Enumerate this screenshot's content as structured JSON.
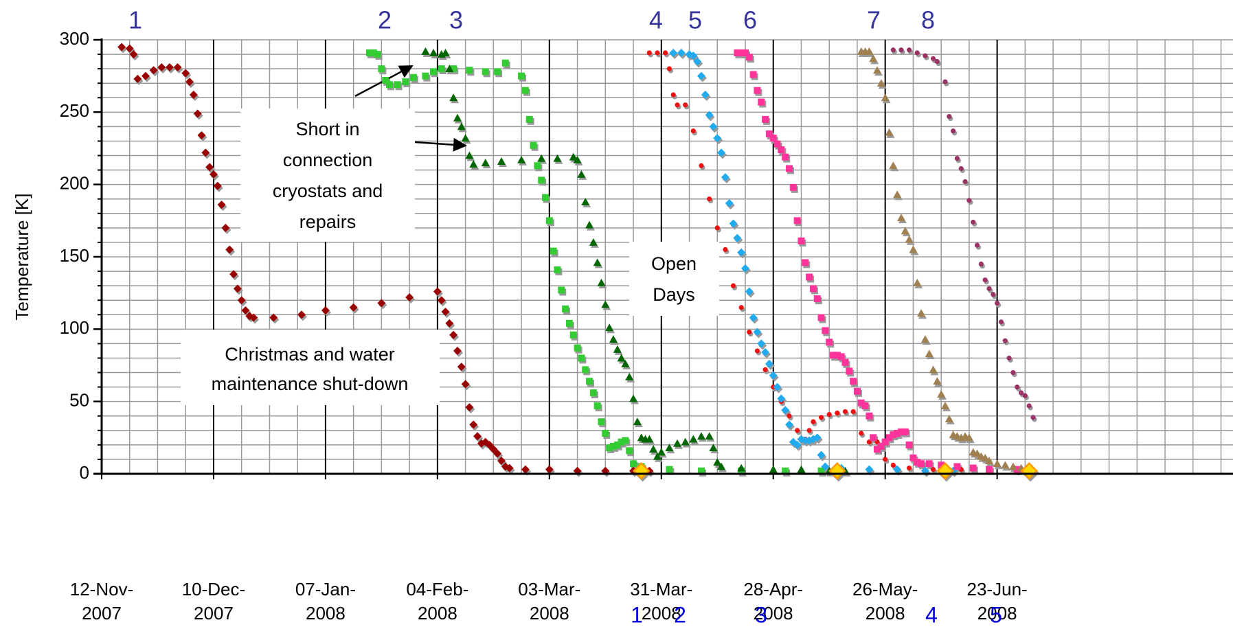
{
  "chart_data": {
    "type": "scatter",
    "y_label": "Temperature [K]",
    "xlim": [
      "2007-11-12",
      "2008-08-21"
    ],
    "xticks": [
      {
        "value": "2007-11-12",
        "label": [
          "12-Nov-",
          "2007"
        ]
      },
      {
        "value": "2007-12-10",
        "label": [
          "10-Dec-",
          "2007"
        ]
      },
      {
        "value": "2008-01-07",
        "label": [
          "07-Jan-",
          "2008"
        ]
      },
      {
        "value": "2008-02-04",
        "label": [
          "04-Feb-",
          "2008"
        ]
      },
      {
        "value": "2008-03-03",
        "label": [
          "03-Mar-",
          "2008"
        ]
      },
      {
        "value": "2008-03-31",
        "label": [
          "31-Mar-",
          "2008"
        ]
      },
      {
        "value": "2008-04-28",
        "label": [
          "28-Apr-",
          "2008"
        ]
      },
      {
        "value": "2008-05-26",
        "label": [
          "26-May-",
          "2008"
        ]
      },
      {
        "value": "2008-06-23",
        "label": [
          "23-Jun-",
          "2008"
        ]
      }
    ],
    "ylim": [
      0,
      300
    ],
    "yticks": [
      0,
      50,
      100,
      150,
      200,
      250,
      300
    ],
    "grid": true,
    "minor_grid_step": {
      "x_days": 7,
      "y": 10
    },
    "annotations": {
      "top_numbers": [
        "1",
        "2",
        "3",
        "4",
        "5",
        "6",
        "7",
        "8"
      ],
      "bottom_numbers": [
        "1",
        "2",
        "3",
        "4",
        "5"
      ],
      "short_note": [
        "Short in",
        "connection",
        "cryostats and",
        "repairs"
      ],
      "open_days_note": [
        "Open",
        "Days"
      ],
      "christmas_note": [
        "Christmas and water",
        "maintenance shut-down"
      ]
    },
    "series": [
      {
        "color": "#990000",
        "marker": "diamond",
        "x": [
          "2007-11-17",
          "2007-11-19",
          "2007-11-20",
          "2007-11-21",
          "2007-11-23",
          "2007-11-25",
          "2007-11-27",
          "2007-11-29",
          "2007-12-01",
          "2007-12-03",
          "2007-12-04",
          "2007-12-05",
          "2007-12-06",
          "2007-12-07",
          "2007-12-08",
          "2007-12-09",
          "2007-12-10",
          "2007-12-11",
          "2007-12-12",
          "2007-12-13",
          "2007-12-14",
          "2007-12-15",
          "2007-12-16",
          "2007-12-17",
          "2007-12-18",
          "2007-12-19",
          "2007-12-20",
          "2007-12-25",
          "2008-01-01",
          "2008-01-07",
          "2008-01-14",
          "2008-01-21",
          "2008-01-28",
          "2008-02-04",
          "2008-02-05",
          "2008-02-06",
          "2008-02-07",
          "2008-02-08",
          "2008-02-09",
          "2008-02-10",
          "2008-02-11",
          "2008-02-12",
          "2008-02-13",
          "2008-02-14",
          "2008-02-15",
          "2008-02-16",
          "2008-02-17",
          "2008-02-18",
          "2008-02-19",
          "2008-02-20",
          "2008-02-21",
          "2008-02-22",
          "2008-02-26",
          "2008-03-03",
          "2008-03-10",
          "2008-03-17",
          "2008-03-24",
          "2008-03-28"
        ],
        "values": [
          295,
          294,
          290,
          273,
          275,
          279,
          281,
          281,
          281,
          277,
          271,
          262,
          249,
          234,
          222,
          212,
          207,
          199,
          186,
          170,
          155,
          138,
          128,
          120,
          113,
          109,
          108,
          108,
          110,
          113,
          115,
          118,
          122,
          126,
          120,
          112,
          104,
          96,
          85,
          74,
          62,
          46,
          34,
          26,
          21,
          22,
          20,
          17,
          14,
          9,
          5,
          4,
          3,
          3,
          2,
          2,
          2,
          2
        ]
      },
      {
        "color": "#33cc33",
        "marker": "square",
        "x": [
          "2008-01-18",
          "2008-01-19",
          "2008-01-20",
          "2008-01-21",
          "2008-01-22",
          "2008-01-23",
          "2008-01-25",
          "2008-01-27",
          "2008-01-29",
          "2008-02-01",
          "2008-02-03",
          "2008-02-05",
          "2008-02-08",
          "2008-02-12",
          "2008-02-16",
          "2008-02-19",
          "2008-02-21",
          "2008-02-25",
          "2008-02-26",
          "2008-02-27",
          "2008-02-28",
          "2008-02-29",
          "2008-03-01",
          "2008-03-02",
          "2008-03-03",
          "2008-03-04",
          "2008-03-05",
          "2008-03-06",
          "2008-03-07",
          "2008-03-08",
          "2008-03-09",
          "2008-03-10",
          "2008-03-11",
          "2008-03-12",
          "2008-03-13",
          "2008-03-14",
          "2008-03-15",
          "2008-03-16",
          "2008-03-17",
          "2008-03-18",
          "2008-03-19",
          "2008-03-20",
          "2008-03-21",
          "2008-03-22",
          "2008-03-23",
          "2008-03-24",
          "2008-03-26",
          "2008-04-02",
          "2008-04-10",
          "2008-04-20",
          "2008-05-01",
          "2008-05-10"
        ],
        "values": [
          291,
          291,
          290,
          280,
          272,
          269,
          269,
          271,
          274,
          275,
          278,
          280,
          280,
          279,
          278,
          278,
          284,
          275,
          265,
          245,
          227,
          213,
          203,
          191,
          175,
          154,
          141,
          127,
          114,
          104,
          96,
          87,
          80,
          72,
          64,
          56,
          47,
          36,
          28,
          18,
          19,
          20,
          22,
          23,
          16,
          7,
          5,
          3,
          2,
          2,
          2,
          2
        ]
      },
      {
        "color": "#006600",
        "marker": "triangle",
        "x": [
          "2008-02-01",
          "2008-02-03",
          "2008-02-05",
          "2008-02-06",
          "2008-02-07",
          "2008-02-08",
          "2008-02-09",
          "2008-02-10",
          "2008-02-11",
          "2008-02-12",
          "2008-02-13",
          "2008-02-16",
          "2008-02-20",
          "2008-02-25",
          "2008-03-01",
          "2008-03-05",
          "2008-03-09",
          "2008-03-10",
          "2008-03-11",
          "2008-03-12",
          "2008-03-13",
          "2008-03-14",
          "2008-03-15",
          "2008-03-16",
          "2008-03-17",
          "2008-03-18",
          "2008-03-19",
          "2008-03-20",
          "2008-03-21",
          "2008-03-22",
          "2008-03-23",
          "2008-03-24",
          "2008-03-25",
          "2008-03-26",
          "2008-03-27",
          "2008-03-28",
          "2008-03-29",
          "2008-03-30",
          "2008-03-31",
          "2008-04-02",
          "2008-04-04",
          "2008-04-06",
          "2008-04-08",
          "2008-04-10",
          "2008-04-12",
          "2008-04-13",
          "2008-04-14",
          "2008-04-15",
          "2008-04-20",
          "2008-04-28",
          "2008-05-05",
          "2008-05-12",
          "2008-05-16"
        ],
        "values": [
          292,
          291,
          290,
          291,
          280,
          260,
          246,
          240,
          232,
          220,
          214,
          215,
          216,
          217,
          218,
          218,
          219,
          217,
          207,
          188,
          172,
          160,
          146,
          132,
          117,
          101,
          93,
          86,
          80,
          76,
          67,
          52,
          36,
          25,
          24,
          24,
          17,
          12,
          15,
          18,
          21,
          22,
          24,
          26,
          26,
          18,
          8,
          5,
          4,
          3,
          3,
          2,
          2
        ]
      },
      {
        "color": "#ee1111",
        "marker": "circle",
        "x": [
          "2008-03-28",
          "2008-03-30",
          "2008-04-01",
          "2008-04-02",
          "2008-04-03",
          "2008-04-04",
          "2008-04-06",
          "2008-04-08",
          "2008-04-10",
          "2008-04-12",
          "2008-04-14",
          "2008-04-16",
          "2008-04-18",
          "2008-04-20",
          "2008-04-22",
          "2008-04-24",
          "2008-04-26",
          "2008-04-28",
          "2008-04-30",
          "2008-05-02",
          "2008-05-04",
          "2008-05-06",
          "2008-05-07",
          "2008-05-08",
          "2008-05-10",
          "2008-05-12",
          "2008-05-14",
          "2008-05-16",
          "2008-05-18",
          "2008-05-20",
          "2008-05-22",
          "2008-05-24",
          "2008-05-26",
          "2008-05-28",
          "2008-06-01",
          "2008-06-07",
          "2008-06-14",
          "2008-06-21",
          "2008-06-28"
        ],
        "values": [
          291,
          291,
          291,
          280,
          262,
          255,
          255,
          237,
          213,
          190,
          170,
          155,
          130,
          115,
          98,
          85,
          72,
          60,
          50,
          40,
          30,
          24,
          30,
          36,
          39,
          41,
          42,
          43,
          43,
          28,
          22,
          22,
          10,
          6,
          4,
          3,
          3,
          3,
          2
        ]
      },
      {
        "color": "#22aaee",
        "marker": "diamond",
        "x": [
          "2008-04-03",
          "2008-04-05",
          "2008-04-07",
          "2008-04-08",
          "2008-04-09",
          "2008-04-10",
          "2008-04-11",
          "2008-04-12",
          "2008-04-13",
          "2008-04-14",
          "2008-04-15",
          "2008-04-16",
          "2008-04-17",
          "2008-04-18",
          "2008-04-19",
          "2008-04-20",
          "2008-04-21",
          "2008-04-22",
          "2008-04-23",
          "2008-04-24",
          "2008-04-25",
          "2008-04-26",
          "2008-04-27",
          "2008-04-28",
          "2008-04-29",
          "2008-04-30",
          "2008-05-01",
          "2008-05-02",
          "2008-05-03",
          "2008-05-04",
          "2008-05-05",
          "2008-05-06",
          "2008-05-07",
          "2008-05-08",
          "2008-05-09",
          "2008-05-10",
          "2008-05-11",
          "2008-05-15",
          "2008-05-22",
          "2008-05-29",
          "2008-06-05",
          "2008-06-12"
        ],
        "values": [
          291,
          291,
          290,
          289,
          285,
          275,
          262,
          248,
          240,
          232,
          222,
          205,
          187,
          173,
          163,
          153,
          142,
          126,
          108,
          98,
          90,
          84,
          76,
          68,
          60,
          52,
          44,
          34,
          22,
          20,
          24,
          23,
          23,
          24,
          25,
          13,
          5,
          4,
          3,
          3,
          2,
          2
        ]
      },
      {
        "color": "#ff3399",
        "marker": "square",
        "x": [
          "2008-04-19",
          "2008-04-20",
          "2008-04-21",
          "2008-04-22",
          "2008-04-23",
          "2008-04-24",
          "2008-04-25",
          "2008-04-26",
          "2008-04-27",
          "2008-04-28",
          "2008-04-29",
          "2008-04-30",
          "2008-05-01",
          "2008-05-02",
          "2008-05-03",
          "2008-05-04",
          "2008-05-05",
          "2008-05-06",
          "2008-05-07",
          "2008-05-08",
          "2008-05-09",
          "2008-05-10",
          "2008-05-11",
          "2008-05-12",
          "2008-05-13",
          "2008-05-14",
          "2008-05-15",
          "2008-05-16",
          "2008-05-17",
          "2008-05-18",
          "2008-05-19",
          "2008-05-20",
          "2008-05-21",
          "2008-05-22",
          "2008-05-23",
          "2008-05-24",
          "2008-05-25",
          "2008-05-26",
          "2008-05-27",
          "2008-05-28",
          "2008-05-29",
          "2008-05-30",
          "2008-05-31",
          "2008-06-01",
          "2008-06-02",
          "2008-06-03",
          "2008-06-04",
          "2008-06-06",
          "2008-06-09",
          "2008-06-13",
          "2008-06-17",
          "2008-06-21",
          "2008-06-28"
        ],
        "values": [
          291,
          291,
          291,
          288,
          276,
          265,
          257,
          245,
          235,
          232,
          228,
          224,
          219,
          211,
          198,
          175,
          161,
          146,
          136,
          128,
          121,
          108,
          99,
          91,
          82,
          82,
          81,
          77,
          71,
          64,
          57,
          49,
          47,
          40,
          25,
          17,
          19,
          22,
          25,
          27,
          28,
          29,
          29,
          20,
          11,
          8,
          7,
          7,
          6,
          5,
          4,
          3,
          3
        ]
      },
      {
        "color": "#a08050",
        "marker": "triangle",
        "x": [
          "2008-05-20",
          "2008-05-21",
          "2008-05-22",
          "2008-05-23",
          "2008-05-24",
          "2008-05-25",
          "2008-05-26",
          "2008-05-27",
          "2008-05-28",
          "2008-05-29",
          "2008-05-30",
          "2008-05-31",
          "2008-06-01",
          "2008-06-02",
          "2008-06-03",
          "2008-06-04",
          "2008-06-05",
          "2008-06-06",
          "2008-06-07",
          "2008-06-08",
          "2008-06-09",
          "2008-06-10",
          "2008-06-11",
          "2008-06-12",
          "2008-06-13",
          "2008-06-14",
          "2008-06-15",
          "2008-06-16",
          "2008-06-17",
          "2008-06-18",
          "2008-06-19",
          "2008-06-20",
          "2008-06-21",
          "2008-06-23",
          "2008-06-25",
          "2008-06-27",
          "2008-06-29",
          "2008-07-01"
        ],
        "values": [
          292,
          292,
          292,
          287,
          279,
          270,
          260,
          236,
          213,
          193,
          177,
          168,
          162,
          155,
          132,
          111,
          93,
          83,
          72,
          64,
          55,
          47,
          38,
          27,
          26,
          25,
          26,
          25,
          15,
          14,
          12,
          11,
          9,
          7,
          6,
          5,
          4,
          4
        ]
      },
      {
        "color": "#993366",
        "marker": "circle",
        "x": [
          "2008-05-28",
          "2008-05-30",
          "2008-06-01",
          "2008-06-03",
          "2008-06-05",
          "2008-06-07",
          "2008-06-08",
          "2008-06-10",
          "2008-06-11",
          "2008-06-12",
          "2008-06-13",
          "2008-06-14",
          "2008-06-15",
          "2008-06-16",
          "2008-06-17",
          "2008-06-18",
          "2008-06-19",
          "2008-06-20",
          "2008-06-21",
          "2008-06-22",
          "2008-06-23",
          "2008-06-24",
          "2008-06-25",
          "2008-06-26",
          "2008-06-27",
          "2008-06-28",
          "2008-06-29",
          "2008-06-30",
          "2008-07-01",
          "2008-07-02"
        ],
        "values": [
          293,
          293,
          293,
          291,
          289,
          287,
          285,
          271,
          247,
          237,
          218,
          211,
          202,
          189,
          174,
          158,
          145,
          134,
          128,
          124,
          118,
          105,
          92,
          80,
          70,
          60,
          56,
          54,
          47,
          39
        ]
      },
      {
        "color": "#ffd700",
        "marker": "diamond-outlined",
        "x": [
          "2008-03-26",
          "2008-05-14",
          "2008-06-10",
          "2008-07-01"
        ],
        "values": [
          2,
          2,
          2,
          2
        ]
      }
    ]
  }
}
